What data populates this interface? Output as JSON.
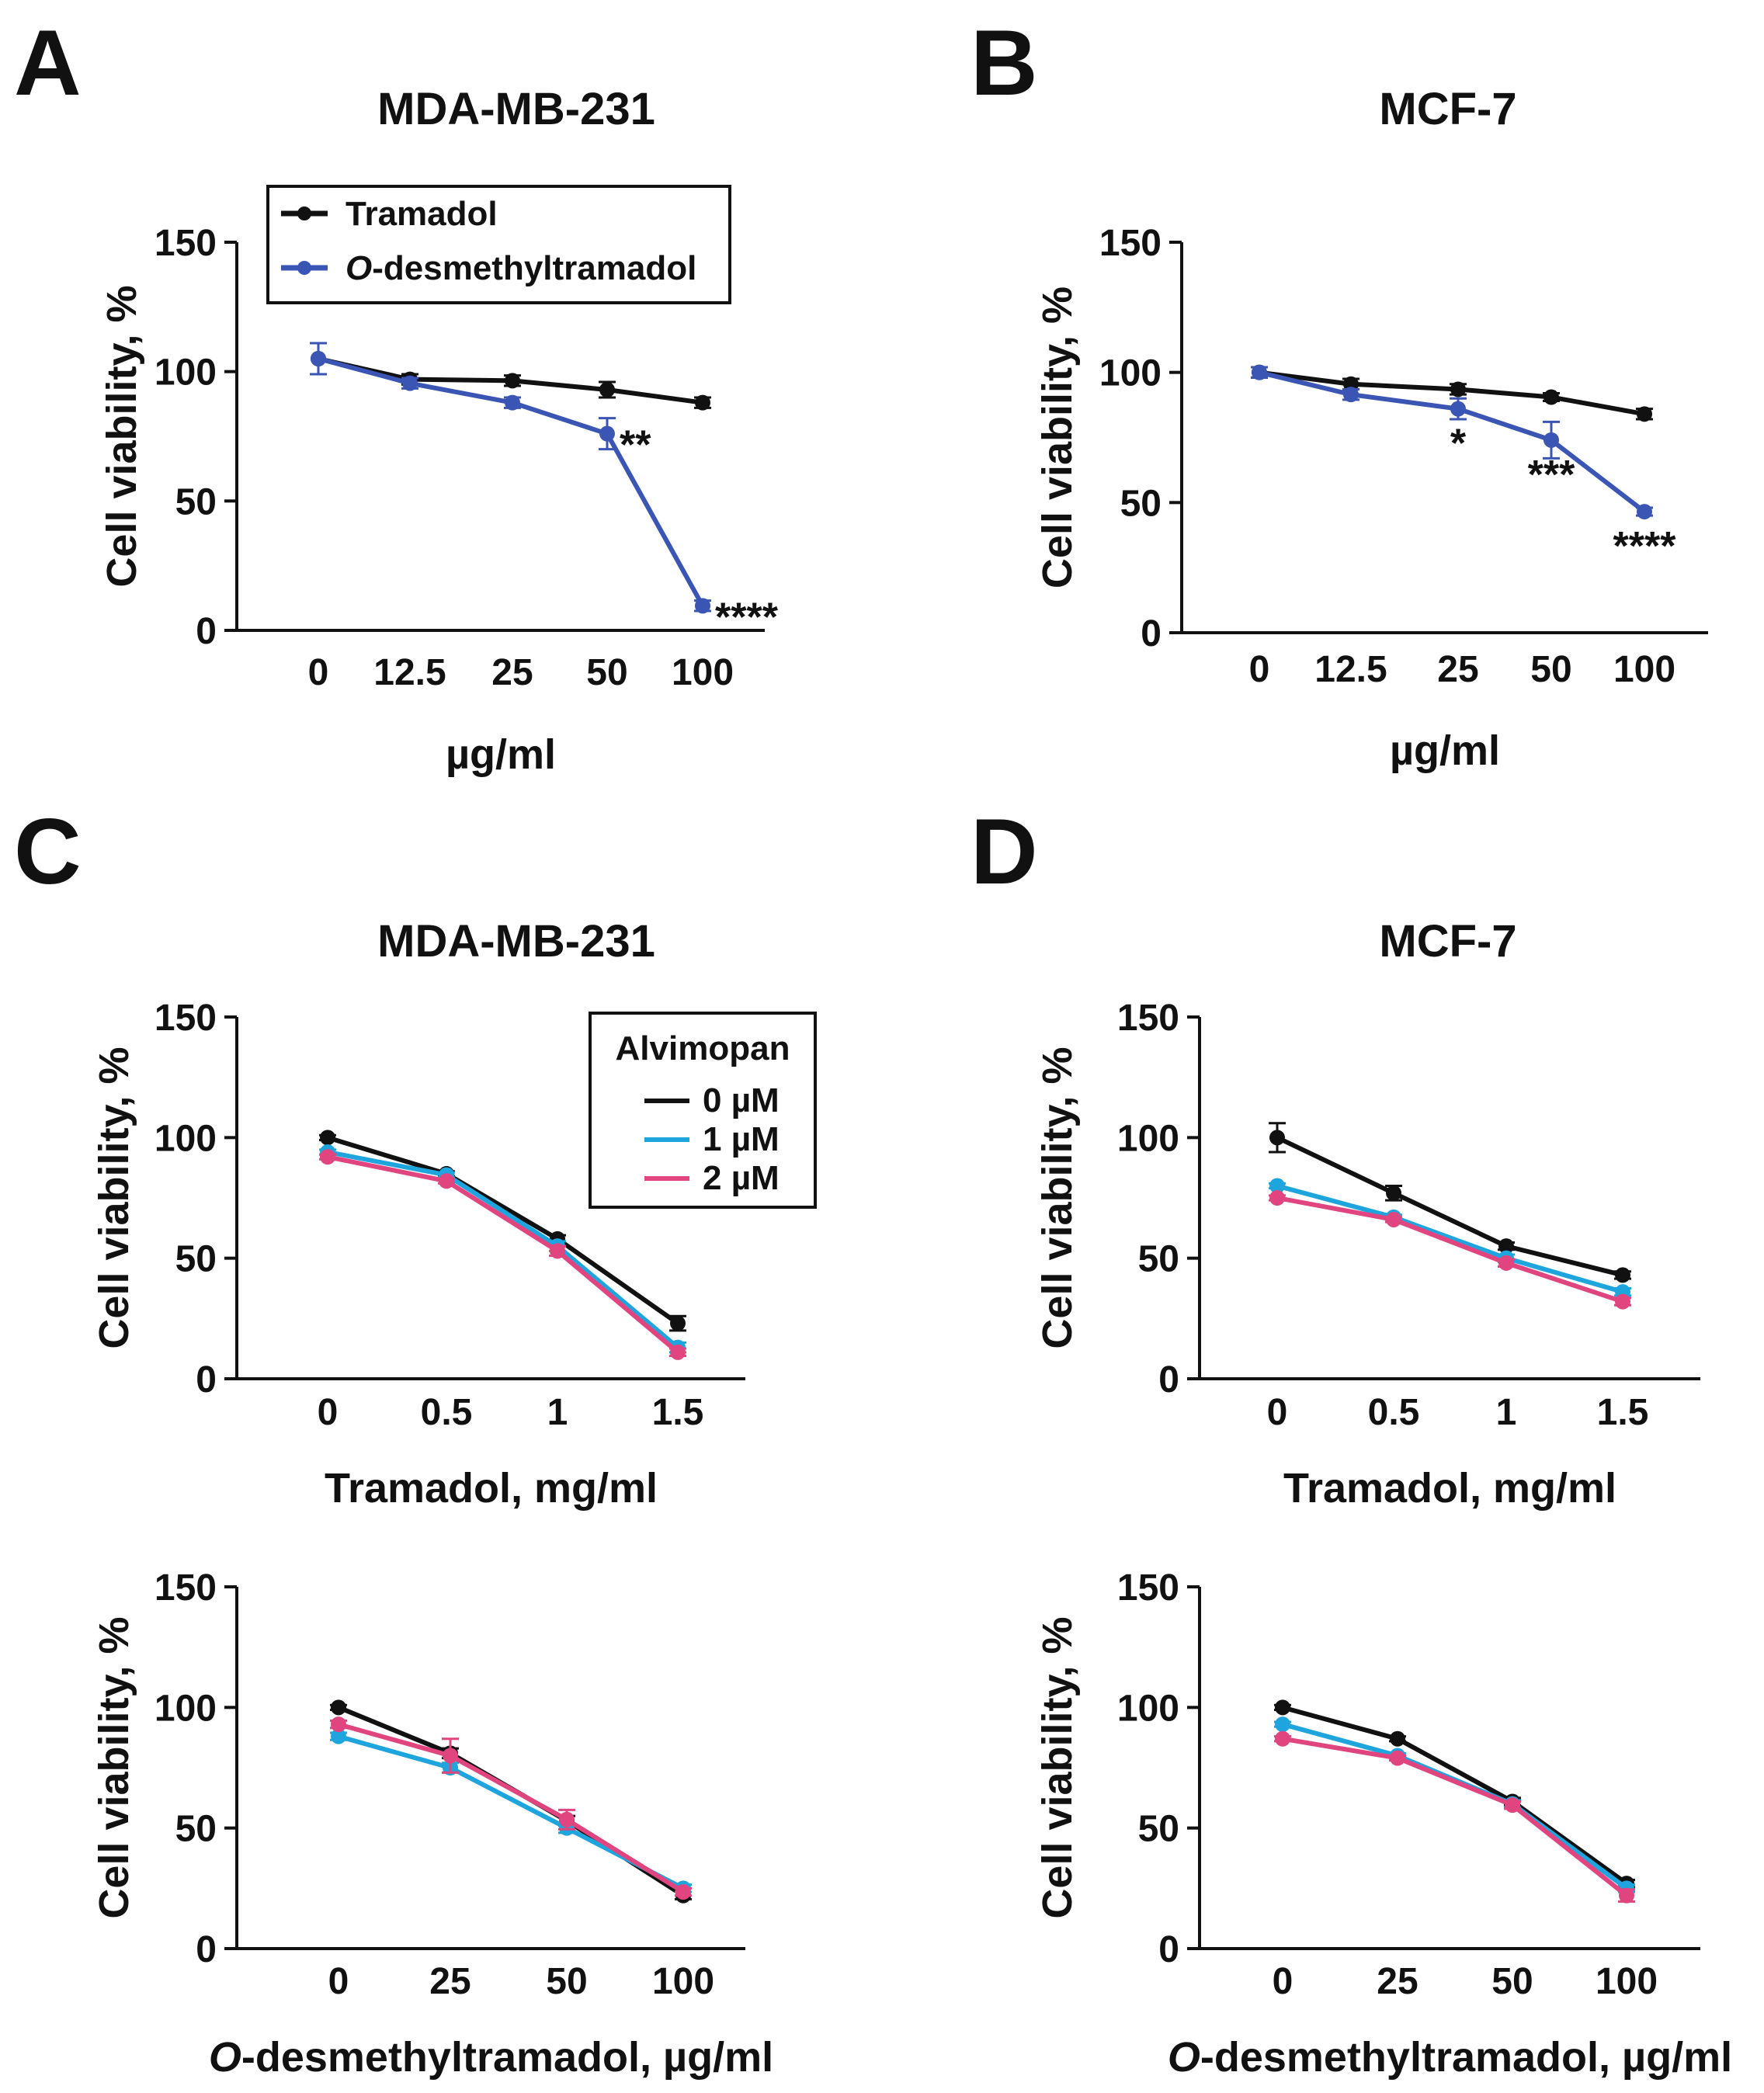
{
  "colors": {
    "tramadol": "#111111",
    "odsmt": "#3a55b4",
    "alv0": "#111111",
    "alv1": "#1fa5dd",
    "alv2": "#e0457f"
  },
  "panels": [
    {
      "letter": "A",
      "title": "MDA-MB-231",
      "chart_data": {
        "type": "line",
        "categories": [
          "0",
          "12.5",
          "25",
          "50",
          "100"
        ],
        "xlabel": "µg/ml",
        "ylabel": "Cell viability, %",
        "ylim": [
          0,
          150
        ],
        "yticks": [
          0,
          50,
          100,
          150
        ],
        "legend_placement": "top-left",
        "series": [
          {
            "name": "Tramadol",
            "color": "#111111",
            "values": [
              105,
              97,
              96.5,
              93,
              88
            ],
            "errors": [
              6,
              2,
              2,
              3,
              2
            ]
          },
          {
            "name": "-desmethyltramadol",
            "name_prefix": "O",
            "color": "#3a55b4",
            "values": [
              105,
              95.5,
              88,
              76,
              9.5
            ],
            "errors": [
              6,
              2,
              2,
              6,
              2
            ]
          }
        ],
        "annotations": [
          {
            "category": 3,
            "series": 1,
            "text": "**",
            "position": "right"
          },
          {
            "category": 4,
            "series": 1,
            "text": "****",
            "position": "right"
          }
        ]
      }
    },
    {
      "letter": "B",
      "title": "MCF-7",
      "chart_data": {
        "type": "line",
        "categories": [
          "0",
          "12.5",
          "25",
          "50",
          "100"
        ],
        "xlabel": "µg/ml",
        "ylabel": "Cell viability, %",
        "ylim": [
          0,
          150
        ],
        "yticks": [
          0,
          50,
          100,
          150
        ],
        "series": [
          {
            "name": "Tramadol",
            "color": "#111111",
            "values": [
              100,
              95.5,
              93.5,
              90.5,
              84
            ],
            "errors": [
              2,
              2,
              2,
              1.5,
              2
            ]
          },
          {
            "name": "O-desmethyltramadol",
            "color": "#3a55b4",
            "values": [
              100,
              91.5,
              86,
              74,
              46.5
            ],
            "errors": [
              2,
              2,
              4,
              7,
              1.5
            ]
          }
        ],
        "annotations": [
          {
            "category": 2,
            "series": 1,
            "text": "*",
            "position": "below"
          },
          {
            "category": 3,
            "series": 1,
            "text": "***",
            "position": "below"
          },
          {
            "category": 4,
            "series": 1,
            "text": "****",
            "position": "below"
          }
        ]
      }
    },
    {
      "letter": "C",
      "title": "MDA-MB-231",
      "chart_data": {
        "type": "line",
        "categories": [
          "0",
          "0.5",
          "1",
          "1.5"
        ],
        "xlabel": "Tramadol, mg/ml",
        "ylabel": "Cell viability, %",
        "ylim": [
          0,
          150
        ],
        "yticks": [
          0,
          50,
          100,
          150
        ],
        "legend_title": "Alvimopan",
        "legend_placement": "top-right",
        "series": [
          {
            "name": "0 µM",
            "color": "#111111",
            "values": [
              100,
              85,
              58,
              23
            ],
            "errors": [
              1,
              1,
              1.5,
              3
            ]
          },
          {
            "name": "1 µM",
            "color": "#1fa5dd",
            "values": [
              94,
              84.5,
              55,
              13
            ],
            "errors": [
              1,
              1,
              2,
              2
            ]
          },
          {
            "name": "2 µM",
            "color": "#e0457f",
            "values": [
              92,
              82,
              53,
              11
            ],
            "errors": [
              1,
              1,
              2,
              1.5
            ]
          }
        ]
      }
    },
    {
      "letter": "D",
      "title": "MCF-7",
      "chart_data": {
        "type": "line",
        "categories": [
          "0",
          "0.5",
          "1",
          "1.5"
        ],
        "xlabel": "Tramadol, mg/ml",
        "ylabel": "Cell viability, %",
        "ylim": [
          0,
          150
        ],
        "yticks": [
          0,
          50,
          100,
          150
        ],
        "series": [
          {
            "name": "0 µM",
            "color": "#111111",
            "values": [
              100,
              77,
              55,
              43
            ],
            "errors": [
              6,
              3,
              1.5,
              1.5
            ]
          },
          {
            "name": "1 µM",
            "color": "#1fa5dd",
            "values": [
              80,
              67,
              50,
              36
            ],
            "errors": [
              1,
              1,
              1.5,
              1.5
            ]
          },
          {
            "name": "2 µM",
            "color": "#e0457f",
            "values": [
              75,
              66,
              48,
              32
            ],
            "errors": [
              1,
              1,
              1.5,
              1.5
            ]
          }
        ]
      }
    },
    {
      "letter": "",
      "title": "",
      "chart_data": {
        "type": "line",
        "categories": [
          "0",
          "25",
          "50",
          "100"
        ],
        "xlabel": "-desmethyltramadol, µg/ml",
        "xlabel_prefix": "O",
        "ylabel": "Cell viability, %",
        "ylim": [
          0,
          150
        ],
        "yticks": [
          0,
          50,
          100,
          150
        ],
        "series": [
          {
            "name": "0 µM",
            "color": "#111111",
            "values": [
              100,
              81,
              53,
              22
            ],
            "errors": [
              1,
              2,
              2,
              1.5
            ]
          },
          {
            "name": "1 µM",
            "color": "#1fa5dd",
            "values": [
              88,
              75,
              50,
              25
            ],
            "errors": [
              1.5,
              2,
              2,
              1.5
            ]
          },
          {
            "name": "2 µM",
            "color": "#e0457f",
            "values": [
              93,
              80,
              53.5,
              23.5
            ],
            "errors": [
              1.5,
              7,
              4,
              1.5
            ]
          }
        ]
      }
    },
    {
      "letter": "",
      "title": "",
      "chart_data": {
        "type": "line",
        "categories": [
          "0",
          "25",
          "50",
          "100"
        ],
        "xlabel": "-desmethyltramadol, µg/ml",
        "xlabel_prefix": "O",
        "ylabel": "Cell viability, %",
        "ylim": [
          0,
          150
        ],
        "yticks": [
          0,
          50,
          100,
          150
        ],
        "series": [
          {
            "name": "0 µM",
            "color": "#111111",
            "values": [
              100,
              87,
              61,
              27
            ],
            "errors": [
              1,
              1,
              1.5,
              1.5
            ]
          },
          {
            "name": "1 µM",
            "color": "#1fa5dd",
            "values": [
              93,
              80,
              60,
              25
            ],
            "errors": [
              1,
              1,
              1.5,
              1.5
            ]
          },
          {
            "name": "2 µM",
            "color": "#e0457f",
            "values": [
              87,
              79,
              59.5,
              22
            ],
            "errors": [
              1,
              1,
              1.5,
              2.5
            ]
          }
        ]
      }
    }
  ]
}
